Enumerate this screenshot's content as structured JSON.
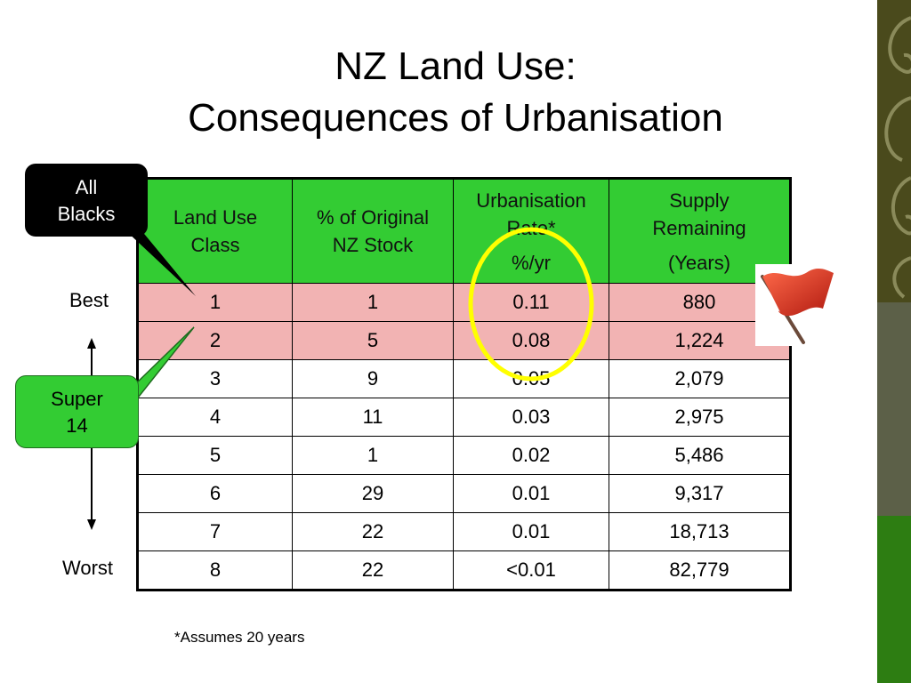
{
  "slide": {
    "title_line1": "NZ Land Use:",
    "title_line2": "Consequences of Urbanisation",
    "footnote": "*Assumes 20 years"
  },
  "table": {
    "headers": [
      {
        "main": "Land Use Class",
        "sub": ""
      },
      {
        "main": "% of Original NZ Stock",
        "sub": ""
      },
      {
        "main": "Urbanisation Rate*",
        "sub": "%/yr"
      },
      {
        "main": "Supply Remaining",
        "sub": "(Years)"
      }
    ],
    "rows": [
      [
        "1",
        "1",
        "0.11",
        "880"
      ],
      [
        "2",
        "5",
        "0.08",
        "1,224"
      ],
      [
        "3",
        "9",
        "0.05",
        "2,079"
      ],
      [
        "4",
        "11",
        "0.03",
        "2,975"
      ],
      [
        "5",
        "1",
        "0.02",
        "5,486"
      ],
      [
        "6",
        "29",
        "0.01",
        "9,317"
      ],
      [
        "7",
        "22",
        "0.01",
        "18,713"
      ],
      [
        "8",
        "22",
        "<0.01",
        "82,779"
      ]
    ],
    "highlight_color": "#f2b3b3",
    "header_color": "#33cc33"
  },
  "scale": {
    "best_label": "Best",
    "worst_label": "Worst"
  },
  "callouts": {
    "all_blacks_line1": "All",
    "all_blacks_line2": "Blacks",
    "super14_line1": "Super",
    "super14_line2": "14"
  },
  "icons": {
    "flag": "red-flag-icon",
    "circle": "yellow-circle-highlight"
  }
}
